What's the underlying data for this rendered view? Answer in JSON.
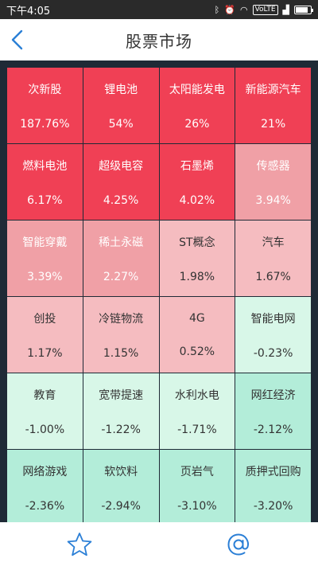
{
  "status_bar": {
    "time": "下午4:05",
    "network": "VoLTE",
    "battery_level": 0.85
  },
  "header": {
    "title": "股票市场",
    "back_icon": "chevron-left-icon"
  },
  "colors": {
    "accent": "#2b7fd6",
    "grid_bg": "#1f2a36",
    "strong_up": "#f04055",
    "mid_up": "#f0a0a6",
    "light_up": "#f5bcc0",
    "light_down": "#d8f7e8",
    "strong_down": "#b3edd9"
  },
  "sectors": [
    {
      "name": "次新股",
      "change": "187.76%",
      "level": "strong_up"
    },
    {
      "name": "锂电池",
      "change": "54%",
      "level": "strong_up"
    },
    {
      "name": "太阳能发电",
      "change": "26%",
      "level": "strong_up"
    },
    {
      "name": "新能源汽车",
      "change": "21%",
      "level": "strong_up"
    },
    {
      "name": "燃料电池",
      "change": "6.17%",
      "level": "strong_up"
    },
    {
      "name": "超级电容",
      "change": "4.25%",
      "level": "strong_up"
    },
    {
      "name": "石墨烯",
      "change": "4.02%",
      "level": "strong_up"
    },
    {
      "name": "传感器",
      "change": "3.94%",
      "level": "mid_up"
    },
    {
      "name": "智能穿戴",
      "change": "3.39%",
      "level": "mid_up"
    },
    {
      "name": "稀土永磁",
      "change": "2.27%",
      "level": "mid_up"
    },
    {
      "name": "ST概念",
      "change": "1.98%",
      "level": "light_up"
    },
    {
      "name": "汽车",
      "change": "1.67%",
      "level": "light_up"
    },
    {
      "name": "创投",
      "change": "1.17%",
      "level": "light_up"
    },
    {
      "name": "冷链物流",
      "change": "1.15%",
      "level": "light_up"
    },
    {
      "name": "4G",
      "change": "0.52%",
      "level": "light_up"
    },
    {
      "name": "智能电网",
      "change": "-0.23%",
      "level": "light_down"
    },
    {
      "name": "教育",
      "change": "-1.00%",
      "level": "light_down"
    },
    {
      "name": "宽带提速",
      "change": "-1.22%",
      "level": "light_down"
    },
    {
      "name": "水利水电",
      "change": "-1.71%",
      "level": "light_down"
    },
    {
      "name": "网红经济",
      "change": "-2.12%",
      "level": "strong_down"
    },
    {
      "name": "网络游戏",
      "change": "-2.36%",
      "level": "strong_down"
    },
    {
      "name": "软饮料",
      "change": "-2.94%",
      "level": "strong_down"
    },
    {
      "name": "页岩气",
      "change": "-3.10%",
      "level": "strong_down"
    },
    {
      "name": "质押式回购",
      "change": "-3.20%",
      "level": "strong_down"
    }
  ],
  "bottom_bar": {
    "left_icon": "star-icon",
    "right_icon": "at-icon"
  }
}
